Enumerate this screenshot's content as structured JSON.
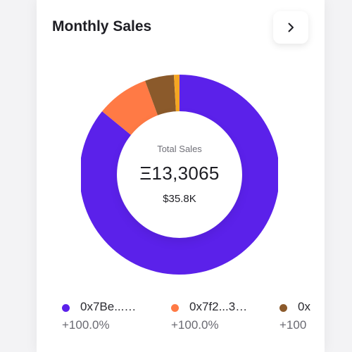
{
  "card": {
    "title": "Monthly Sales"
  },
  "nav": {
    "icon": "chevron-right-icon"
  },
  "center": {
    "caption": "Total Sales",
    "value": "Ξ13,3065",
    "usd": "$35.8K"
  },
  "legend": [
    {
      "name": "0x7Be...…",
      "change": "+100.0%",
      "color": "#5b21ea"
    },
    {
      "name": "0x7f2...3…",
      "change": "+100.0%",
      "color": "#ff7a45"
    },
    {
      "name": "0x",
      "change": "+100",
      "color": "#8b5a2b"
    }
  ],
  "chart_data": {
    "type": "pie",
    "slices": [
      {
        "value": 85.9,
        "color": "#5b21ea"
      },
      {
        "value": 8.5,
        "color": "#ff7a45"
      },
      {
        "value": 4.7,
        "color": "#8b5a2b"
      },
      {
        "value": 0.9,
        "color": "#f5a623"
      }
    ]
  }
}
